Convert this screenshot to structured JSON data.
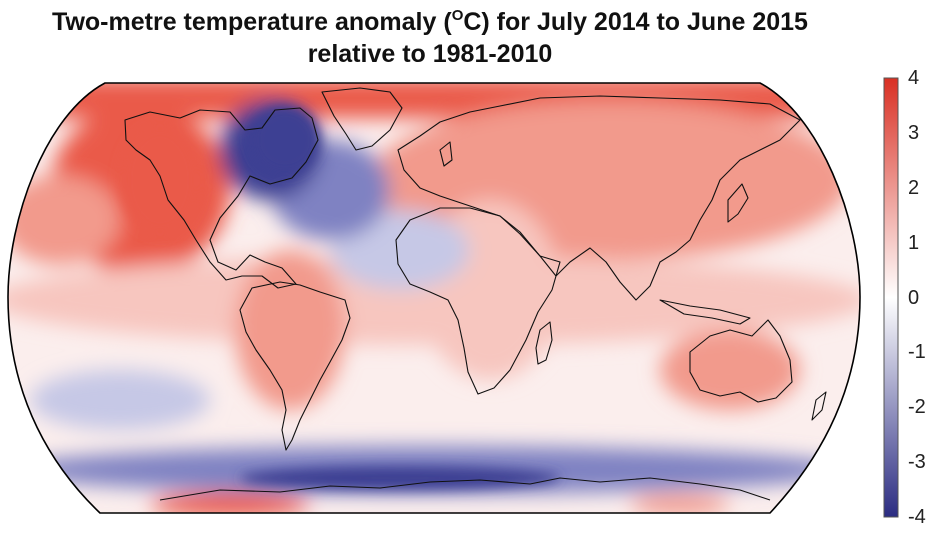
{
  "title": {
    "line1_before": "Two-metre temperature anomaly (",
    "line1_sup": "O",
    "line1_after": "C) for July 2014 to June 2015",
    "line2": "relative to 1981-2010"
  },
  "colorbar": {
    "min": -4,
    "max": 4,
    "ticks": [
      "4",
      "3",
      "2",
      "1",
      "0",
      "-1",
      "-2",
      "-3",
      "-4"
    ],
    "colors": [
      "#2b2c82",
      "#ffffff",
      "#d93023"
    ]
  },
  "map": {
    "projection": "Robinson",
    "palette": {
      "strong_warm": "#ea5a48",
      "warm": "#f29a8c",
      "mild_warm": "#f7c6bf",
      "neutral": "#fbeeed",
      "mild_cool": "#c6c8e6",
      "cool": "#7f82c2",
      "strong_cool": "#3d3f93",
      "coastline": "#111111",
      "frame": "#000000"
    },
    "anomaly_regions": [
      {
        "name": "arctic",
        "level": "strong_warm"
      },
      {
        "name": "western-north-america",
        "level": "strong_warm"
      },
      {
        "name": "eastern-canada-greenland",
        "level": "strong_cool"
      },
      {
        "name": "north-atlantic",
        "level": "cool"
      },
      {
        "name": "north-pacific",
        "level": "warm"
      },
      {
        "name": "eurasia",
        "level": "warm"
      },
      {
        "name": "tropical-pacific",
        "level": "warm"
      },
      {
        "name": "southern-ocean",
        "level": "strong_cool"
      },
      {
        "name": "antarctica-peninsula",
        "level": "strong_warm"
      },
      {
        "name": "tropical-oceans",
        "level": "mild_warm"
      }
    ]
  }
}
